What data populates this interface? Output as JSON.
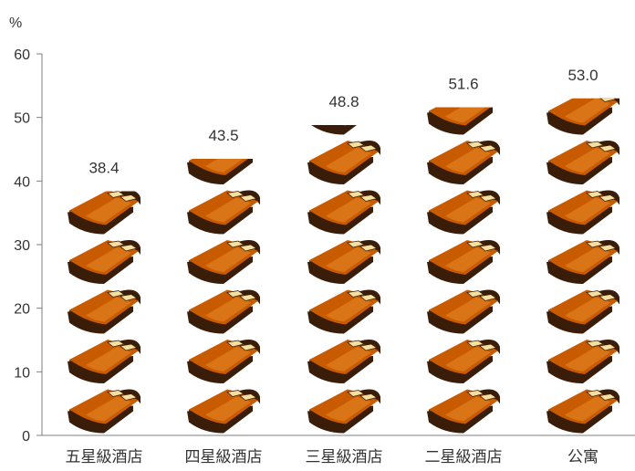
{
  "chart_data": {
    "type": "bar",
    "title": "",
    "xlabel": "",
    "ylabel": "%",
    "ylim": [
      0,
      60
    ],
    "yticks": [
      0,
      10,
      20,
      30,
      40,
      50,
      60
    ],
    "categories": [
      "五星級酒店",
      "四星級酒店",
      "三星級酒店",
      "二星級酒店",
      "公寓"
    ],
    "values": [
      38.4,
      43.5,
      48.8,
      51.6,
      53.0
    ],
    "data_labels": [
      "38.4",
      "43.5",
      "48.8",
      "51.6",
      "53.0"
    ],
    "grid": false,
    "legend": "none",
    "marker": "bed-icon",
    "colors": {
      "axis": "#7f7f7f",
      "text": "#333333",
      "bed_body": "#c85a00",
      "bed_stripe": "#e88a2a",
      "bed_frame": "#3a1d08",
      "pillow": "#f3dfa0"
    }
  }
}
